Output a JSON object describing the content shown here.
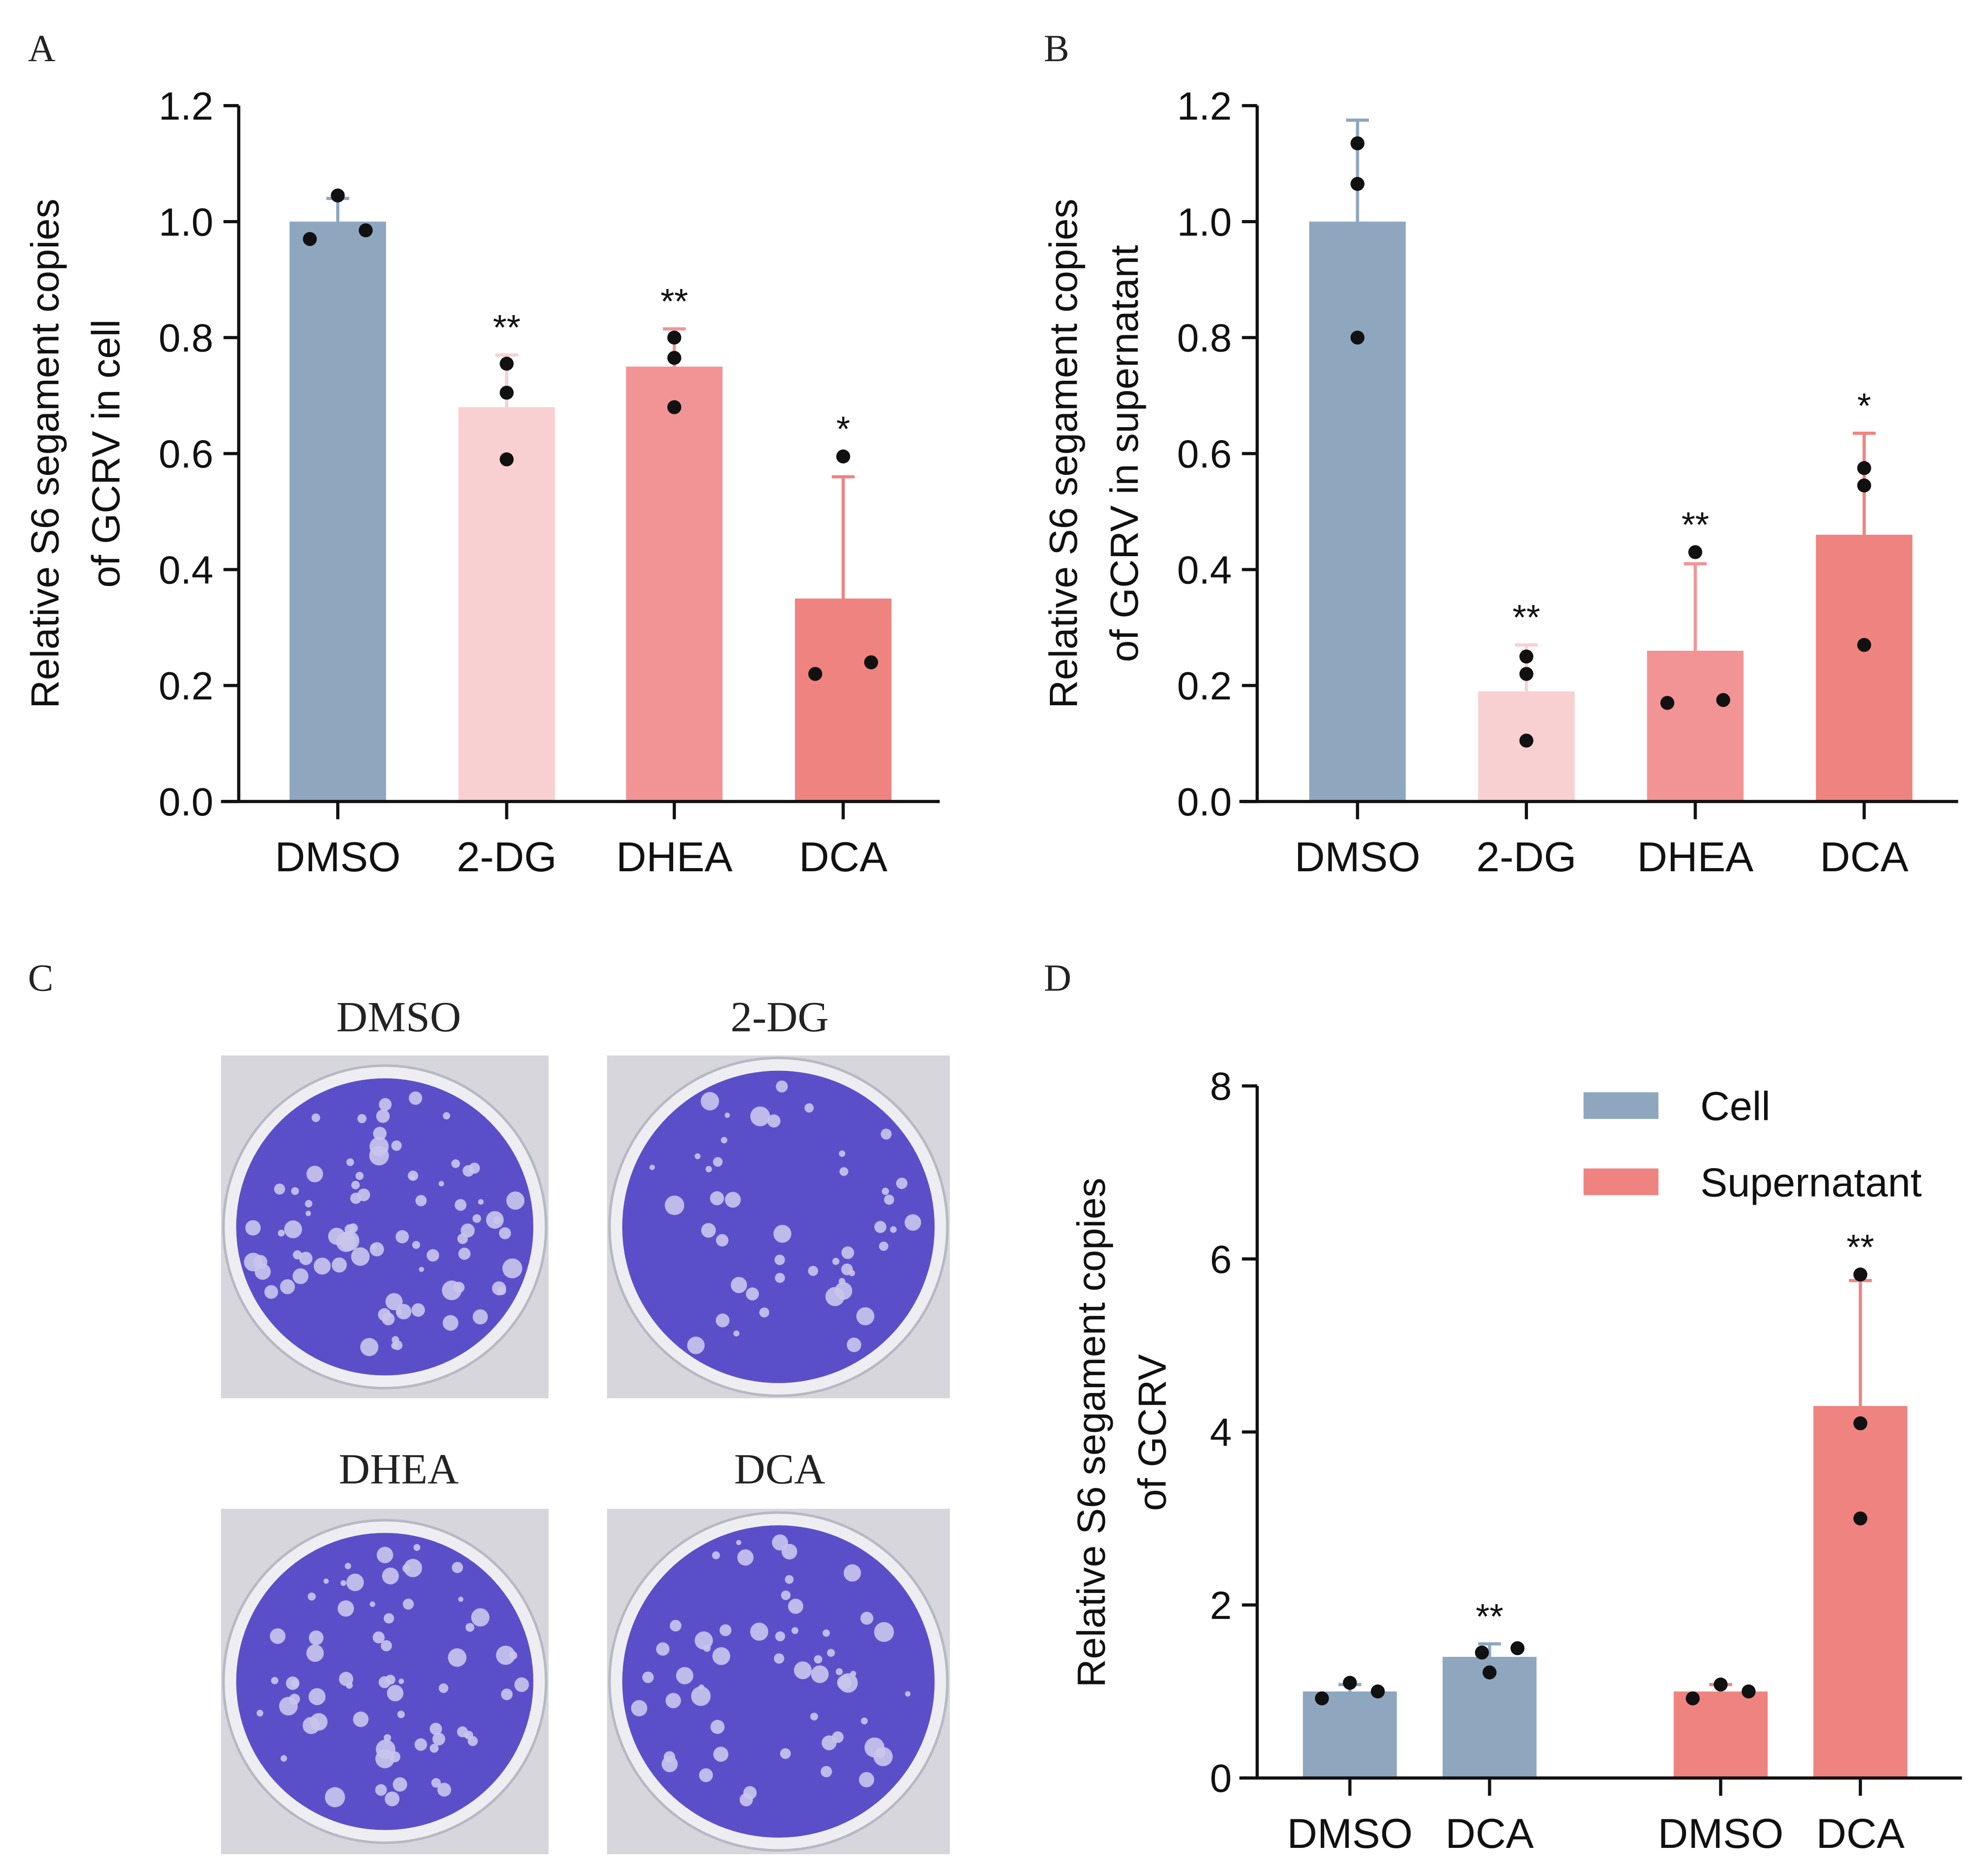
{
  "panels": {
    "a": "A",
    "b": "B",
    "c": "C",
    "d": "D"
  },
  "colors": {
    "blue": "#8ea7bf",
    "light_pink": "#f9d0d2",
    "mid_pink": "#f29496",
    "red": "#ef8380",
    "plate": "#5b4fc9"
  },
  "plates": {
    "labels": [
      "DMSO",
      "2-DG",
      "DHEA",
      "DCA"
    ]
  },
  "chart_data": [
    {
      "type": "bar",
      "panel": "A",
      "ylabel_lines": [
        "Relative S6 segament copies",
        "of GCRV in cell"
      ],
      "ylim": [
        0,
        1.2
      ],
      "yticks": [
        "0.0",
        "0.2",
        "0.4",
        "0.6",
        "0.8",
        "1.0",
        "1.2"
      ],
      "categories": [
        "DMSO",
        "2-DG",
        "DHEA",
        "DCA"
      ],
      "values": [
        1.0,
        0.68,
        0.75,
        0.35
      ],
      "error_upper": [
        1.04,
        0.77,
        0.815,
        0.56
      ],
      "points": [
        [
          0.97,
          1.045,
          0.985
        ],
        [
          0.59,
          0.705,
          0.755
        ],
        [
          0.68,
          0.765,
          0.8
        ],
        [
          0.22,
          0.595,
          0.24
        ]
      ],
      "significance": [
        "",
        "**",
        "**",
        "*"
      ],
      "bar_colors": [
        "#8ea7bf",
        "#f9d0d2",
        "#f29496",
        "#ef8380"
      ]
    },
    {
      "type": "bar",
      "panel": "B",
      "ylabel_lines": [
        "Relative S6 segament copies",
        "of GCRV in supernatant"
      ],
      "ylim": [
        0,
        1.2
      ],
      "yticks": [
        "0.0",
        "0.2",
        "0.4",
        "0.6",
        "0.8",
        "1.0",
        "1.2"
      ],
      "categories": [
        "DMSO",
        "2-DG",
        "DHEA",
        "DCA"
      ],
      "values": [
        1.0,
        0.19,
        0.26,
        0.46
      ],
      "error_upper": [
        1.175,
        0.27,
        0.41,
        0.635
      ],
      "points": [
        [
          0.8,
          1.065,
          1.135
        ],
        [
          0.105,
          0.22,
          0.25
        ],
        [
          0.17,
          0.43,
          0.175
        ],
        [
          0.27,
          0.545,
          0.575
        ]
      ],
      "significance": [
        "",
        "**",
        "**",
        "*"
      ],
      "bar_colors": [
        "#8ea7bf",
        "#f9d0d2",
        "#f29496",
        "#ef8380"
      ]
    },
    {
      "type": "bar",
      "panel": "D",
      "ylabel_lines": [
        "Relative S6 segament copies",
        "of GCRV"
      ],
      "ylim": [
        0,
        8
      ],
      "yticks": [
        "0",
        "2",
        "4",
        "6",
        "8"
      ],
      "categories": [
        "DMSO",
        "DCA",
        "DMSO",
        "DCA"
      ],
      "groups": [
        "Cell",
        "Cell",
        "Supernatant",
        "Supernatant"
      ],
      "values": [
        1.0,
        1.4,
        1.0,
        4.3
      ],
      "error_upper": [
        1.08,
        1.55,
        1.08,
        5.75
      ],
      "points": [
        [
          0.92,
          1.1,
          1.0
        ],
        [
          1.22,
          1.45,
          1.5
        ],
        [
          0.92,
          1.08,
          1.0
        ],
        [
          3.0,
          4.1,
          5.82
        ]
      ],
      "significance": [
        "",
        "**",
        "",
        "**"
      ],
      "bar_colors": [
        "#8ea7bf",
        "#8ea7bf",
        "#ef8380",
        "#ef8380"
      ],
      "legend": [
        {
          "label": "Cell",
          "color": "#8ea7bf"
        },
        {
          "label": "Supernatant",
          "color": "#ef8380"
        }
      ],
      "legend_position": "top-right"
    }
  ]
}
